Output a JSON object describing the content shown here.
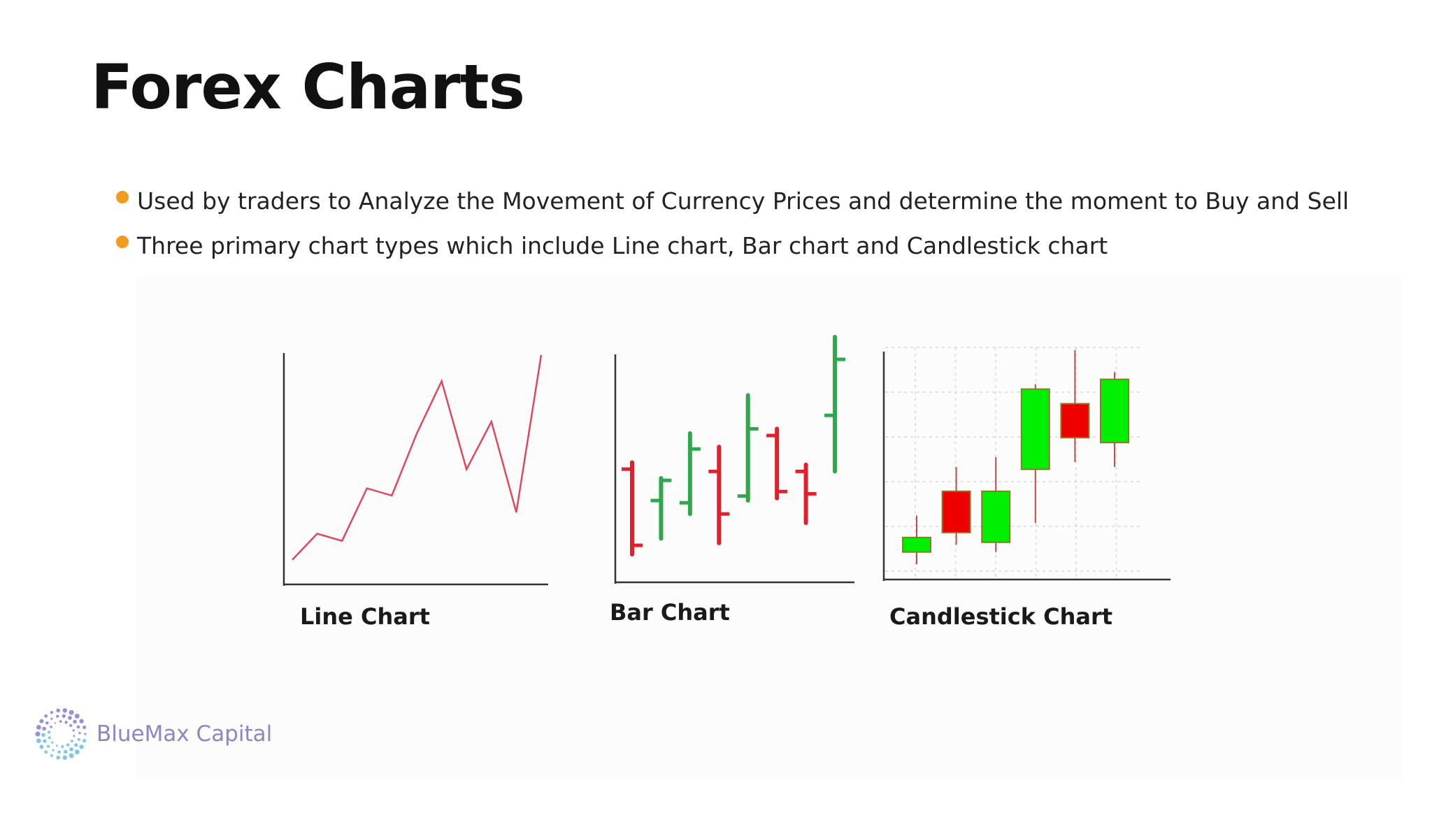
{
  "slide": {
    "title": "Forex Charts",
    "bullets": [
      "Used by traders to Analyze the Movement of Currency Prices and determine the moment to Buy and Sell",
      "Three primary chart types which include Line chart, Bar chart and Candlestick chart"
    ],
    "bullet_color": "#f39a1e"
  },
  "logo": {
    "text": "BlueMax Capital",
    "color": "#8c86c6"
  },
  "chart_data": [
    {
      "type": "line",
      "title": "Line Chart",
      "color": "#e0485a",
      "values": [
        5,
        16,
        13,
        35,
        32,
        58,
        80,
        43,
        63,
        25,
        91
      ],
      "ylim": [
        0,
        100
      ]
    },
    {
      "type": "bar",
      "title": "Bar Chart",
      "colors": {
        "up": "#2ea84a",
        "down": "#e0202a"
      },
      "ohlc": [
        {
          "open": 48,
          "high": 51,
          "low": 10,
          "close": 14
        },
        {
          "open": 34,
          "high": 44,
          "low": 17,
          "close": 43
        },
        {
          "open": 33,
          "high": 64,
          "low": 28,
          "close": 57
        },
        {
          "open": 47,
          "high": 58,
          "low": 15,
          "close": 28
        },
        {
          "open": 36,
          "high": 81,
          "low": 34,
          "close": 66
        },
        {
          "open": 63,
          "high": 66,
          "low": 35,
          "close": 38
        },
        {
          "open": 47,
          "high": 50,
          "low": 24,
          "close": 37
        },
        {
          "open": 72,
          "high": 107,
          "low": 47,
          "close": 97
        }
      ]
    },
    {
      "type": "candlestick",
      "title": "Candlestick Chart",
      "colors": {
        "up": "#00ee00",
        "down": "#ee0000",
        "edge": "#8a7a2a"
      },
      "grid": true,
      "ohlc": [
        {
          "open": 11,
          "high": 26,
          "low": 6,
          "close": 17
        },
        {
          "open": 36,
          "high": 46,
          "low": 14,
          "close": 19
        },
        {
          "open": 15,
          "high": 50,
          "low": 11,
          "close": 36
        },
        {
          "open": 45,
          "high": 80,
          "low": 23,
          "close": 78
        },
        {
          "open": 72,
          "high": 94,
          "low": 48,
          "close": 58
        },
        {
          "open": 56,
          "high": 85,
          "low": 46,
          "close": 82
        }
      ],
      "ylim": [
        0,
        100
      ]
    }
  ]
}
